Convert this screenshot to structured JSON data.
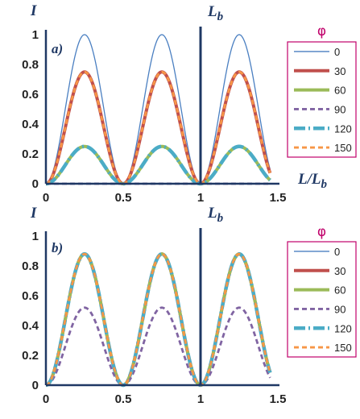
{
  "chart_data": [
    {
      "type": "line",
      "panel_label": "a)",
      "ylabel": "I",
      "xlabel_main": "L/L",
      "xlabel_sub": "b",
      "marker_label_main": "L",
      "marker_label_sub": "b",
      "marker_x": 1,
      "legend_title": "φ",
      "xlim": [
        0,
        1.5
      ],
      "ylim": [
        0,
        1
      ],
      "x_max_data": 1.45,
      "x_ticks": [
        "0",
        "0.5",
        "1",
        "1.5"
      ],
      "y_ticks": [
        "0",
        "0.2",
        "0.4",
        "0.6",
        "0.8",
        "1"
      ],
      "series": [
        {
          "name": "0",
          "peak": 1.0,
          "color": "#4a7fc1",
          "width": 1.3,
          "dash": ""
        },
        {
          "name": "30",
          "peak": 0.75,
          "color": "#c0504d",
          "width": 4,
          "dash": ""
        },
        {
          "name": "60",
          "peak": 0.25,
          "color": "#9bbb59",
          "width": 4,
          "dash": ""
        },
        {
          "name": "90",
          "peak": 0.0,
          "color": "#8064a2",
          "width": 2.8,
          "dash": "6,4"
        },
        {
          "name": "120",
          "peak": 0.25,
          "color": "#4bacc6",
          "width": 4.5,
          "dash": "14,4,2,4"
        },
        {
          "name": "150",
          "peak": 0.75,
          "color": "#f79646",
          "width": 2.8,
          "dash": "6,4"
        }
      ]
    },
    {
      "type": "line",
      "panel_label": "b)",
      "ylabel": "I",
      "xlabel_main": "L/L",
      "xlabel_sub": "b",
      "marker_label_main": "L",
      "marker_label_sub": "b",
      "marker_x": 1,
      "legend_title": "φ",
      "xlim": [
        0,
        1.5
      ],
      "ylim": [
        0,
        1
      ],
      "x_max_data": 1.45,
      "x_ticks": [
        "0",
        "0.5",
        "1",
        "1.5"
      ],
      "y_ticks": [
        "0",
        "0.2",
        "0.4",
        "0.6",
        "0.8",
        "1"
      ],
      "series": [
        {
          "name": "0",
          "peak": 0.0,
          "color": "#4a7fc1",
          "width": 1.3,
          "dash": ""
        },
        {
          "name": "30",
          "peak": 0.88,
          "color": "#c0504d",
          "width": 4,
          "dash": ""
        },
        {
          "name": "60",
          "peak": 0.88,
          "color": "#9bbb59",
          "width": 4,
          "dash": ""
        },
        {
          "name": "90",
          "peak": 0.52,
          "color": "#8064a2",
          "width": 2.8,
          "dash": "6,4"
        },
        {
          "name": "120",
          "peak": 0.88,
          "color": "#4bacc6",
          "width": 4.5,
          "dash": "14,4,2,4"
        },
        {
          "name": "150",
          "peak": 0.88,
          "color": "#f79646",
          "width": 2.8,
          "dash": "6,4"
        }
      ]
    }
  ]
}
